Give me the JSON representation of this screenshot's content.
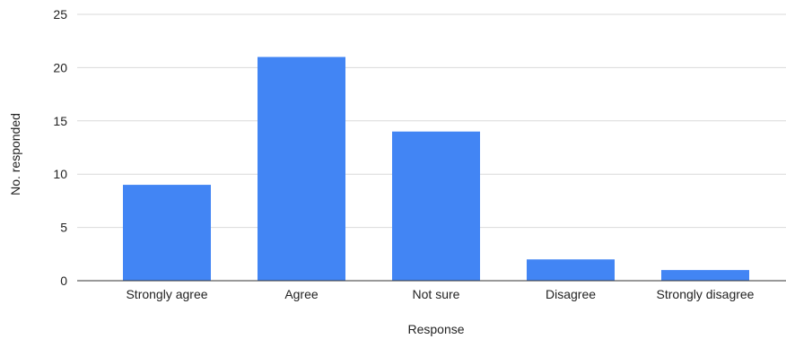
{
  "chart_data": {
    "type": "bar",
    "title": "",
    "xlabel": "Response",
    "ylabel": "No. responded",
    "categories": [
      "Strongly agree",
      "Agree",
      "Not sure",
      "Disagree",
      "Strongly disagree"
    ],
    "values": [
      9,
      21,
      14,
      2,
      1
    ],
    "ylim": [
      0,
      25
    ],
    "yticks": [
      0,
      5,
      10,
      15,
      20,
      25
    ],
    "grid": true,
    "legend": "none",
    "bar_color": "#4285F4",
    "gridline_color": "#D9D9D9",
    "axis_color": "#333333"
  }
}
